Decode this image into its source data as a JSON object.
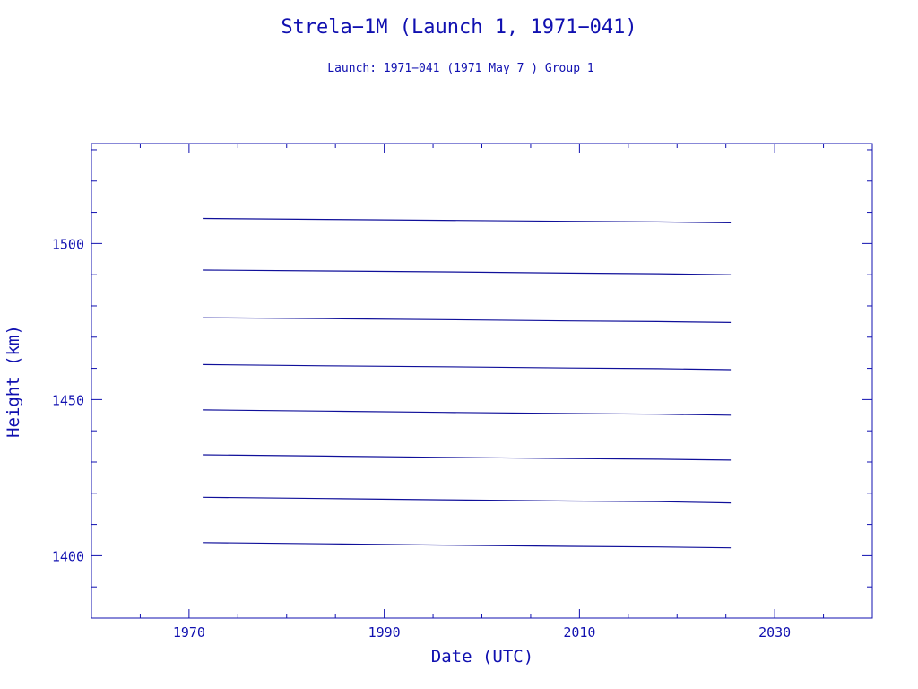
{
  "chart_data": {
    "type": "line",
    "title": "Strela−1M (Launch 1, 1971−041)",
    "subtitle": "Launch: 1971−041  (1971 May  7 )  Group 1",
    "xlabel": "Date (UTC)",
    "ylabel": "Height (km)",
    "xlim": [
      1960,
      2040
    ],
    "ylim": [
      1380,
      1532
    ],
    "x_ticks": [
      1970,
      1990,
      2010,
      2030
    ],
    "y_ticks": [
      1400,
      1450,
      1500
    ],
    "x_minor_step": 5,
    "y_minor_step": 10,
    "grid": false,
    "legend": "none",
    "color": "#10109a",
    "series": [
      {
        "x": [
          1971.4,
          1984,
          1996,
          2009,
          2018,
          2025.5
        ],
        "values": [
          1508.0,
          1507.7,
          1507.4,
          1507.1,
          1506.9,
          1506.6
        ]
      },
      {
        "x": [
          1971.4,
          1984,
          1996,
          2009,
          2018,
          2025.5
        ],
        "values": [
          1491.5,
          1491.2,
          1490.9,
          1490.5,
          1490.3,
          1490.0
        ]
      },
      {
        "x": [
          1971.4,
          1984,
          1996,
          2009,
          2018,
          2025.5
        ],
        "values": [
          1476.2,
          1475.9,
          1475.6,
          1475.2,
          1475.0,
          1474.7
        ]
      },
      {
        "x": [
          1971.4,
          1984,
          1996,
          2009,
          2018,
          2025.5
        ],
        "values": [
          1461.2,
          1460.8,
          1460.5,
          1460.1,
          1459.9,
          1459.6
        ]
      },
      {
        "x": [
          1971.4,
          1984,
          1996,
          2009,
          2018,
          2025.5
        ],
        "values": [
          1446.7,
          1446.3,
          1445.9,
          1445.5,
          1445.3,
          1445.0
        ]
      },
      {
        "x": [
          1971.4,
          1984,
          1996,
          2009,
          2018,
          2025.5
        ],
        "values": [
          1432.3,
          1431.9,
          1431.5,
          1431.1,
          1430.9,
          1430.6
        ]
      },
      {
        "x": [
          1971.4,
          1984,
          1996,
          2009,
          2018,
          2025.5
        ],
        "values": [
          1418.7,
          1418.3,
          1417.9,
          1417.5,
          1417.3,
          1416.9
        ]
      },
      {
        "x": [
          1971.4,
          1984,
          1996,
          2009,
          2018,
          2025.5
        ],
        "values": [
          1404.2,
          1403.8,
          1403.4,
          1403.0,
          1402.8,
          1402.5
        ]
      }
    ]
  }
}
